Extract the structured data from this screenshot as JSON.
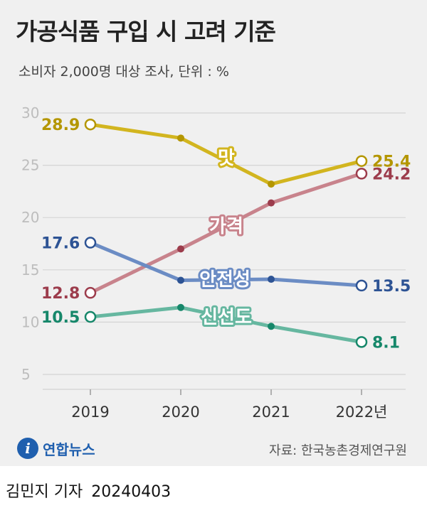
{
  "title": "가공식품 구입 시 고려 기준",
  "subtitle": "소비자 2,000명 대상 조사, 단위 : %",
  "source": "자료: 한국농촌경제연구원",
  "logo": {
    "badge": "i",
    "text": "연합뉴스"
  },
  "footer": {
    "author": "김민지 기자",
    "date": "20240403"
  },
  "chart_data": {
    "type": "line",
    "categories": [
      "2019",
      "2020",
      "2021",
      "2022년"
    ],
    "ylim": [
      5,
      30
    ],
    "yticks": [
      5,
      10,
      15,
      20,
      25,
      30
    ],
    "grid": true,
    "series": [
      {
        "name": "맛",
        "color": "#d2b51f",
        "values": [
          28.9,
          27.6,
          23.2,
          25.4
        ],
        "start_label": "28.9",
        "end_label": "25.4",
        "label_color": "#b49600"
      },
      {
        "name": "가격",
        "color": "#c8838c",
        "values": [
          12.8,
          17.0,
          21.4,
          24.2
        ],
        "start_label": "12.8",
        "end_label": "24.2",
        "label_color": "#9c3c4c"
      },
      {
        "name": "안전성",
        "color": "#6b8cc4",
        "values": [
          17.6,
          14.0,
          14.1,
          13.5
        ],
        "start_label": "17.6",
        "end_label": "13.5",
        "label_color": "#2d5394"
      },
      {
        "name": "신선도",
        "color": "#66b7a0",
        "values": [
          10.5,
          11.4,
          9.6,
          8.1
        ],
        "start_label": "10.5",
        "end_label": "8.1",
        "label_color": "#16876a"
      }
    ]
  }
}
